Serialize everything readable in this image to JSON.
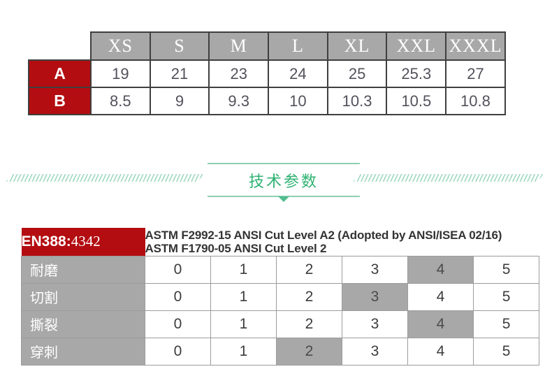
{
  "size_table": {
    "columns": [
      "XS",
      "S",
      "M",
      "L",
      "XL",
      "XXL",
      "XXXL"
    ],
    "rows": [
      {
        "label": "A",
        "values": [
          "19",
          "21",
          "23",
          "24",
          "25",
          "25.3",
          "27"
        ]
      },
      {
        "label": "B",
        "values": [
          "8.5",
          "9",
          "9.3",
          "10",
          "10.3",
          "10.5",
          "10.8"
        ]
      }
    ]
  },
  "divider": {
    "title": "技术参数"
  },
  "tech_table": {
    "standard_label": "EN388:",
    "standard_code": "4342",
    "astm_line1": "ASTM F2992-15 ANSI Cut Level A2 (Adopted by ANSI/ISEA 02/16)",
    "astm_line2": "ASTM F1790-05 ANSI Cut Level 2",
    "scale": [
      "0",
      "1",
      "2",
      "3",
      "4",
      "5"
    ],
    "rows": [
      {
        "label": "耐磨",
        "highlight": "4"
      },
      {
        "label": "切割",
        "highlight": "3"
      },
      {
        "label": "撕裂",
        "highlight": "4"
      },
      {
        "label": "穿刺",
        "highlight": "2"
      }
    ]
  },
  "colors": {
    "red": "#b30d11",
    "gray": "#a8a8a8",
    "green_text": "#2fb272",
    "green_line": "#8ecfb4",
    "green_hatch": "#a2d8c2",
    "dark_border": "#3f3f3f",
    "light_border": "#9c9c9c"
  }
}
